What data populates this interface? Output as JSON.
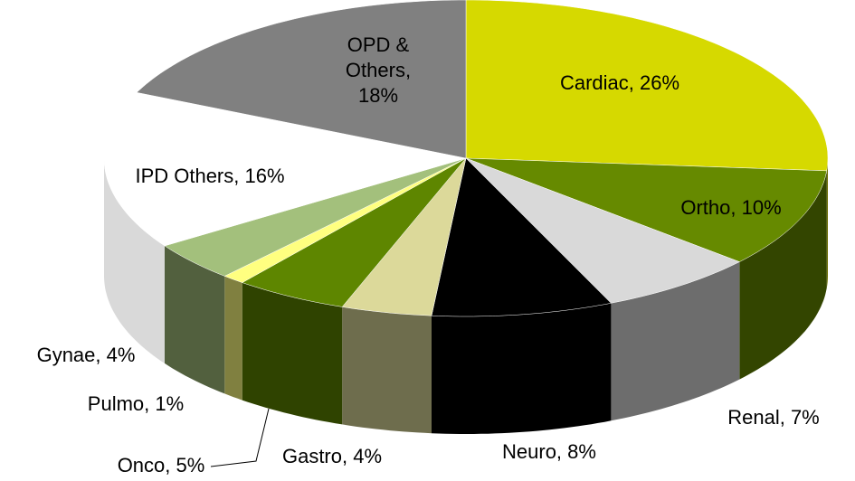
{
  "chart_data": {
    "type": "pie3d",
    "values": [
      26,
      10,
      7,
      8,
      4,
      5,
      1,
      4,
      16,
      18
    ],
    "value_labels": [
      "Cardiac, 26%",
      "Ortho, 10%",
      "Renal, 7%",
      "Neuro, 8%",
      "Gastro, 4%",
      "Onco, 5%",
      "Pulmo, 1%",
      "Gynae, 4%",
      "IPD Others, 16%",
      "OPD & Others, 18%"
    ],
    "colors": [
      "#d6d900",
      "#668a00",
      "#d9d9d9",
      "#000000",
      "#dcd99a",
      "#5e8600",
      "#ffff80",
      "#a3c07c",
      "#ffffff",
      "#808080"
    ]
  }
}
